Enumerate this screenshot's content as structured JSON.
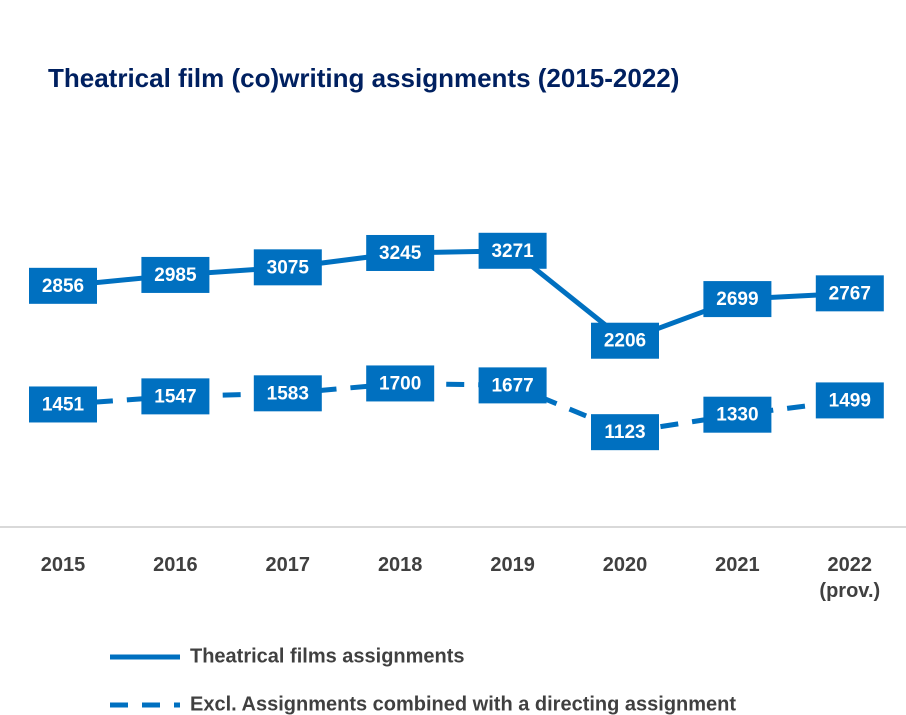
{
  "chart_data": {
    "type": "line",
    "title": "Theatrical film (co)writing assignments (2015-2022)",
    "categories": [
      "2015",
      "2016",
      "2017",
      "2018",
      "2019",
      "2020",
      "2021",
      "2022 (prov.)"
    ],
    "series": [
      {
        "name": "Theatrical films assignments",
        "color": "#0070c0",
        "dash": false,
        "values": [
          2856,
          2985,
          3075,
          3245,
          3271,
          2206,
          2699,
          2767
        ]
      },
      {
        "name": "Excl. Assignments combined with a directing assignment",
        "color": "#0070c0",
        "dash": true,
        "values": [
          1451,
          1547,
          1583,
          1700,
          1677,
          1123,
          1330,
          1499
        ]
      }
    ],
    "ylim": [
      0,
      4500
    ]
  }
}
